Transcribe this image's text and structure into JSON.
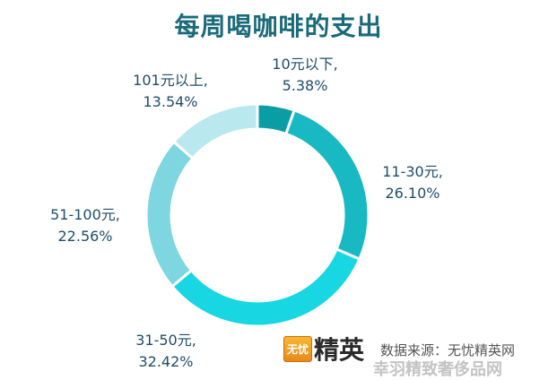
{
  "chart_data": {
    "type": "pie",
    "title": "每周喝咖啡的支出",
    "categories": [
      "10元以下",
      "11-30元",
      "31-50元",
      "51-100元",
      "101元以上"
    ],
    "values": [
      5.38,
      26.1,
      32.42,
      22.56,
      13.54
    ],
    "value_labels": [
      "5.38%",
      "26.10%",
      "32.42%",
      "22.56%",
      "13.54%"
    ],
    "category_labels": [
      "10元以下,",
      "11-30元,",
      "31-50元,",
      "51-100元,",
      "101元以上,"
    ],
    "colors": [
      "#0a9ea4",
      "#19b9c3",
      "#18d6e2",
      "#7dd6e0",
      "#b9e8ee"
    ],
    "style": "donut",
    "legend": "none"
  },
  "source_text": "数据来源：无忧精英网",
  "logo": {
    "badge": "无忧",
    "text": "精英"
  },
  "watermark": "幸羽精致奢侈品网"
}
